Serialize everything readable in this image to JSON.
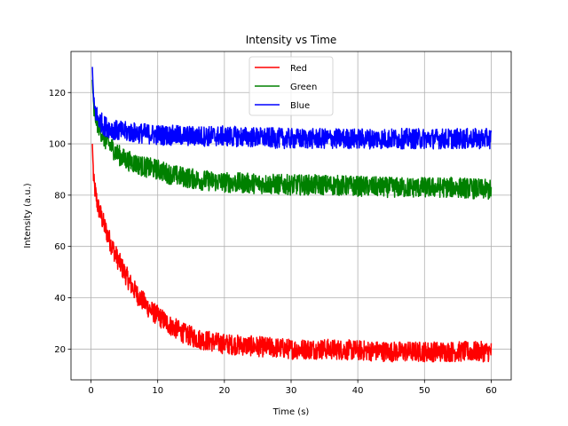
{
  "chart_data": {
    "type": "line",
    "title": "Intensity vs Time",
    "xlabel": "Time (s)",
    "ylabel": "Intensity (a.u.)",
    "xlim": [
      -3,
      63
    ],
    "ylim": [
      8,
      136
    ],
    "xticks": [
      0,
      10,
      20,
      30,
      40,
      50,
      60
    ],
    "yticks": [
      20,
      40,
      60,
      80,
      100,
      120
    ],
    "grid": true,
    "legend_position": "top-center",
    "series": [
      {
        "name": "Red",
        "color": "#ff0000",
        "x": [
          0.2,
          0.4,
          1,
          2,
          3,
          4,
          5,
          6,
          7,
          8,
          9,
          10,
          12,
          14,
          16,
          18,
          20,
          25,
          30,
          35,
          40,
          45,
          50,
          55,
          60
        ],
        "y": [
          100,
          85,
          76,
          68,
          61,
          55,
          50,
          45,
          41,
          38,
          35,
          33,
          29,
          26,
          24,
          23,
          22,
          21,
          20,
          20,
          19.5,
          19,
          19,
          19,
          19
        ],
        "noise": 4
      },
      {
        "name": "Green",
        "color": "#008000",
        "x": [
          0.2,
          0.4,
          1,
          2,
          3,
          4,
          5,
          6,
          8,
          10,
          12,
          14,
          16,
          18,
          20,
          25,
          30,
          35,
          40,
          45,
          50,
          55,
          60
        ],
        "y": [
          125,
          113,
          108,
          102,
          99,
          96,
          94,
          93,
          91,
          90,
          88,
          87,
          86,
          85.5,
          85,
          84.5,
          84,
          84,
          83.5,
          83,
          83,
          83,
          82
        ],
        "noise": 4
      },
      {
        "name": "Blue",
        "color": "#0000ff",
        "x": [
          0.2,
          0.4,
          1,
          2,
          3,
          4,
          6,
          8,
          10,
          15,
          20,
          25,
          30,
          35,
          40,
          45,
          50,
          55,
          60
        ],
        "y": [
          130,
          115,
          110,
          107,
          106,
          105,
          104.5,
          104,
          103.5,
          103,
          103,
          102.5,
          102,
          102,
          102,
          102,
          102,
          102,
          102
        ],
        "noise": 4
      }
    ]
  }
}
